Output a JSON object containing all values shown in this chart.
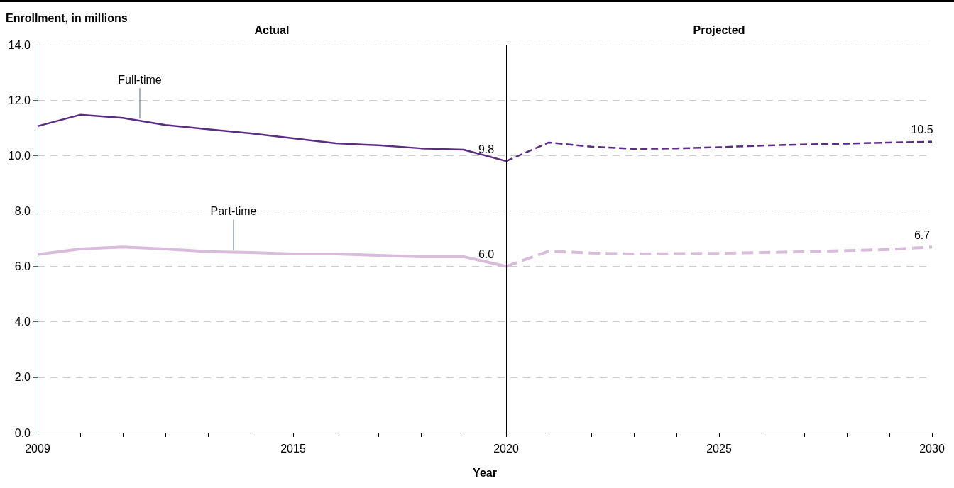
{
  "chart_data": {
    "type": "line",
    "xlabel": "Year",
    "ylabel": "Enrollment, in millions",
    "xlim": [
      2009,
      2030
    ],
    "xticks": [
      2009,
      {
        "value": 2010,
        "label": null
      },
      {
        "value": 2011,
        "label": null
      },
      {
        "value": 2012,
        "label": null
      },
      {
        "value": 2013,
        "label": null
      },
      {
        "value": 2014,
        "label": null
      },
      2015,
      {
        "value": 2016,
        "label": null
      },
      {
        "value": 2017,
        "label": null
      },
      {
        "value": 2018,
        "label": null
      },
      {
        "value": 2019,
        "label": null
      },
      2020,
      {
        "value": 2021,
        "label": null
      },
      {
        "value": 2022,
        "label": null
      },
      {
        "value": 2023,
        "label": null
      },
      {
        "value": 2024,
        "label": null
      },
      2025,
      {
        "value": 2026,
        "label": null
      },
      {
        "value": 2027,
        "label": null
      },
      {
        "value": 2028,
        "label": null
      },
      {
        "value": 2029,
        "label": null
      },
      2030
    ],
    "ylim": [
      0,
      14
    ],
    "yticks": [
      {
        "value": 0,
        "label": "0.0"
      },
      {
        "value": 2,
        "label": "2.0"
      },
      {
        "value": 4,
        "label": "4.0"
      },
      {
        "value": 6,
        "label": "6.0"
      },
      {
        "value": 8,
        "label": "8.0"
      },
      {
        "value": 10,
        "label": "10.0"
      },
      {
        "value": 12,
        "label": "12.0"
      },
      {
        "value": 14,
        "label": "14.0"
      }
    ],
    "grid": "y",
    "legend": false,
    "marker": "none",
    "series": [
      {
        "name": "Full-time",
        "color": "#5b2c83",
        "line_style": "solid",
        "x": [
          2009,
          2010,
          2011,
          2012,
          2013,
          2014,
          2015,
          2016,
          2017,
          2018,
          2019,
          2020
        ],
        "values": [
          11.06,
          11.47,
          11.36,
          11.1,
          10.95,
          10.8,
          10.62,
          10.44,
          10.37,
          10.26,
          10.21,
          9.8
        ],
        "value_labels": [
          null,
          null,
          null,
          null,
          null,
          null,
          null,
          null,
          null,
          null,
          null,
          "9.8"
        ]
      },
      {
        "color": "#5b2c83",
        "line_style": "dashed",
        "x": [
          2020,
          2021,
          2022,
          2023,
          2024,
          2025,
          2026,
          2027,
          2028,
          2029,
          2030
        ],
        "values": [
          9.8,
          10.47,
          10.32,
          10.24,
          10.26,
          10.3,
          10.36,
          10.4,
          10.43,
          10.47,
          10.5
        ],
        "value_labels": [
          null,
          null,
          null,
          null,
          null,
          null,
          null,
          null,
          null,
          null,
          "10.5"
        ]
      },
      {
        "name": "Part-time",
        "color": "#d9bcdc",
        "line_style": "solid",
        "x": [
          2009,
          2010,
          2011,
          2012,
          2013,
          2014,
          2015,
          2016,
          2017,
          2018,
          2019,
          2020
        ],
        "values": [
          6.43,
          6.63,
          6.7,
          6.63,
          6.53,
          6.5,
          6.45,
          6.45,
          6.4,
          6.35,
          6.35,
          6.0
        ],
        "value_labels": [
          null,
          null,
          null,
          null,
          null,
          null,
          null,
          null,
          null,
          null,
          null,
          "6.0"
        ]
      },
      {
        "color": "#d9bcdc",
        "line_style": "dashed",
        "x": [
          2020,
          2021,
          2022,
          2023,
          2024,
          2025,
          2026,
          2027,
          2028,
          2029,
          2030
        ],
        "values": [
          6.0,
          6.55,
          6.48,
          6.45,
          6.46,
          6.47,
          6.5,
          6.53,
          6.57,
          6.61,
          6.7
        ],
        "value_labels": [
          null,
          null,
          null,
          null,
          null,
          null,
          null,
          null,
          null,
          null,
          "6.7"
        ]
      }
    ],
    "ref_lines": [
      {
        "axis": "x",
        "value": 2020,
        "color": "#000000",
        "line_style": "solid"
      }
    ],
    "annotations": [
      "Actual",
      "Projected"
    ]
  }
}
